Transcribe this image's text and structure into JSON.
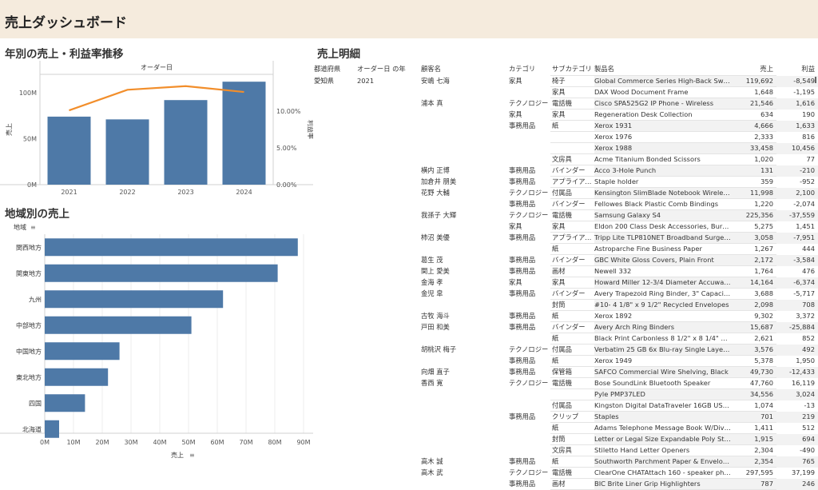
{
  "header": {
    "title": "売上ダッシュボード"
  },
  "chart1": {
    "title": "年別の売上・利益率推移"
  },
  "chart2": {
    "title": "地域別の売上"
  },
  "table_section": {
    "title": "売上明細"
  },
  "chart_data": [
    {
      "type": "bar",
      "title": "年別の売上・利益率推移",
      "top_label": "オーダー日",
      "ylabel": "売上",
      "y2label": "利益率",
      "categories": [
        "2021",
        "2022",
        "2023",
        "2024"
      ],
      "series": [
        {
          "name": "売上",
          "type": "bar",
          "values": [
            74000000,
            71000000,
            92000000,
            112000000
          ],
          "color": "#4e79a7"
        },
        {
          "name": "利益率",
          "type": "line",
          "values": [
            0.101,
            0.129,
            0.134,
            0.126
          ],
          "color": "#f28e2b"
        }
      ],
      "ylim": [
        0,
        120000000
      ],
      "y_ticks": [
        0,
        50000000,
        100000000
      ],
      "y_tick_labels": [
        "0M",
        "50M",
        "100M"
      ],
      "y2lim": [
        0,
        0.15
      ],
      "y2_ticks": [
        0,
        0.05,
        0.1
      ],
      "y2_tick_labels": [
        "0.00%",
        "5.00%",
        "10.00%"
      ]
    },
    {
      "type": "bar",
      "orientation": "horizontal",
      "title": "地域別の売上",
      "category_label": "地域",
      "xlabel": "売上",
      "categories": [
        "関西地方",
        "関東地方",
        "九州",
        "中部地方",
        "中国地方",
        "東北地方",
        "四国",
        "北海道"
      ],
      "values": [
        88000000,
        81000000,
        62000000,
        51000000,
        26000000,
        22000000,
        14000000,
        5000000
      ],
      "color": "#4e79a7",
      "xlim": [
        0,
        90000000
      ],
      "x_ticks": [
        0,
        10000000,
        20000000,
        30000000,
        40000000,
        50000000,
        60000000,
        70000000,
        80000000,
        90000000
      ],
      "x_tick_labels": [
        "0M",
        "10M",
        "20M",
        "30M",
        "40M",
        "50M",
        "60M",
        "70M",
        "80M",
        "90M"
      ]
    }
  ],
  "table": {
    "headers": [
      "都道府県",
      "オーダー日 の年",
      "顧客名",
      "カテゴリ",
      "サブカテゴリ",
      "製品名",
      "売上",
      "利益"
    ],
    "rows": [
      [
        "愛知県",
        "2021",
        "安嶋 七海",
        "家具",
        "椅子",
        "Global Commerce Series High-Back Swivel...",
        "119,692",
        "-8,549"
      ],
      [
        "",
        "",
        "",
        "",
        "家具",
        "DAX Wood Document Frame",
        "1,648",
        "-1,195"
      ],
      [
        "",
        "",
        "浦本 真",
        "テクノロジー",
        "電話機",
        "Cisco SPA525G2 IP Phone - Wireless",
        "21,546",
        "1,616"
      ],
      [
        "",
        "",
        "",
        "家具",
        "家具",
        "Regeneration Desk Collection",
        "634",
        "190"
      ],
      [
        "",
        "",
        "",
        "事務用品",
        "紙",
        "Xerox 1931",
        "4,666",
        "1,633"
      ],
      [
        "",
        "",
        "",
        "",
        "",
        "Xerox 1976",
        "2,333",
        "816"
      ],
      [
        "",
        "",
        "",
        "",
        "",
        "Xerox 1988",
        "33,458",
        "10,456"
      ],
      [
        "",
        "",
        "",
        "",
        "文房具",
        "Acme Titanium Bonded Scissors",
        "1,020",
        "77"
      ],
      [
        "",
        "",
        "横内 正博",
        "事務用品",
        "バインダー",
        "Acco 3-Hole Punch",
        "131",
        "-210"
      ],
      [
        "",
        "",
        "加倉井 朋美",
        "事務用品",
        "アプライアン...",
        "Staple holder",
        "359",
        "-952"
      ],
      [
        "",
        "",
        "花野 大輔",
        "テクノロジー",
        "付属品",
        "Kensington SlimBlade Notebook Wireless ...",
        "11,998",
        "2,100"
      ],
      [
        "",
        "",
        "",
        "事務用品",
        "バインダー",
        "Fellowes Black Plastic Comb Bindings",
        "1,220",
        "-2,074"
      ],
      [
        "",
        "",
        "我孫子 大輝",
        "テクノロジー",
        "電話機",
        "Samsung Galaxy S4",
        "225,356",
        "-37,559"
      ],
      [
        "",
        "",
        "",
        "家具",
        "家具",
        "Eldon 200 Class Desk Accessories, Burgu...",
        "5,275",
        "1,451"
      ],
      [
        "",
        "",
        "柿沼 美優",
        "事務用品",
        "アプライアン...",
        "Tripp Lite TLP810NET Broadband Surge fo...",
        "3,058",
        "-7,951"
      ],
      [
        "",
        "",
        "",
        "",
        "紙",
        "Astroparche Fine Business Paper",
        "1,267",
        "444"
      ],
      [
        "",
        "",
        "葛生 茂",
        "事務用品",
        "バインダー",
        "GBC White Gloss Covers, Plain Front",
        "2,172",
        "-3,584"
      ],
      [
        "",
        "",
        "関上 愛美",
        "事務用品",
        "画材",
        "Newell 332",
        "1,764",
        "476"
      ],
      [
        "",
        "",
        "金海 孝",
        "家具",
        "家具",
        "Howard Miller 12-3/4 Diameter Accuwave ...",
        "14,164",
        "-6,374"
      ],
      [
        "",
        "",
        "金児 皐",
        "事務用品",
        "バインダー",
        "Avery Trapezoid Ring Binder, 3\" Capacity, ...",
        "3,688",
        "-5,717"
      ],
      [
        "",
        "",
        "",
        "",
        "封筒",
        "#10- 4 1/8\" x 9 1/2\" Recycled Envelopes",
        "2,098",
        "708"
      ],
      [
        "",
        "",
        "古牧 海斗",
        "事務用品",
        "紙",
        "Xerox 1892",
        "9,302",
        "3,372"
      ],
      [
        "",
        "",
        "戸田 和美",
        "事務用品",
        "バインダー",
        "Avery Arch Ring Binders",
        "15,687",
        "-25,884"
      ],
      [
        "",
        "",
        "",
        "",
        "紙",
        "Black Print Carbonless 8 1/2\" x 8 1/4\" Rapi...",
        "2,621",
        "852"
      ],
      [
        "",
        "",
        "胡桃沢 梅子",
        "テクノロジー",
        "付属品",
        "Verbatim 25 GB 6x Blu-ray Single Layer Re...",
        "3,576",
        "492"
      ],
      [
        "",
        "",
        "",
        "事務用品",
        "紙",
        "Xerox 1949",
        "5,378",
        "1,950"
      ],
      [
        "",
        "",
        "向畑 直子",
        "事務用品",
        "保管箱",
        "SAFCO Commercial Wire Shelving, Black",
        "49,730",
        "-12,433"
      ],
      [
        "",
        "",
        "香西 寛",
        "テクノロジー",
        "電話機",
        "Bose SoundLink Bluetooth Speaker",
        "47,760",
        "16,119"
      ],
      [
        "",
        "",
        "",
        "",
        "",
        "Pyle PMP37LED",
        "34,556",
        "3,024"
      ],
      [
        "",
        "",
        "",
        "",
        "付属品",
        "Kingston Digital DataTraveler 16GB USB 2.0",
        "1,074",
        "-13"
      ],
      [
        "",
        "",
        "",
        "事務用品",
        "クリップ",
        "Staples",
        "701",
        "219"
      ],
      [
        "",
        "",
        "",
        "",
        "紙",
        "Adams Telephone Message Book W/Divide...",
        "1,411",
        "512"
      ],
      [
        "",
        "",
        "",
        "",
        "封筒",
        "Letter or Legal Size Expandable Poly Strin...",
        "1,915",
        "694"
      ],
      [
        "",
        "",
        "",
        "",
        "文房具",
        "Stiletto Hand Letter Openers",
        "2,304",
        "-490"
      ],
      [
        "",
        "",
        "高木 誠",
        "事務用品",
        "紙",
        "Southworth Parchment Paper & Envelopes",
        "2,354",
        "765"
      ],
      [
        "",
        "",
        "高木 武",
        "テクノロジー",
        "電話機",
        "ClearOne CHATAttach 160 - speaker phone",
        "297,595",
        "37,199"
      ],
      [
        "",
        "",
        "",
        "事務用品",
        "画材",
        "BIC Brite Liner Grip Highlighters",
        "787",
        "246"
      ]
    ]
  }
}
